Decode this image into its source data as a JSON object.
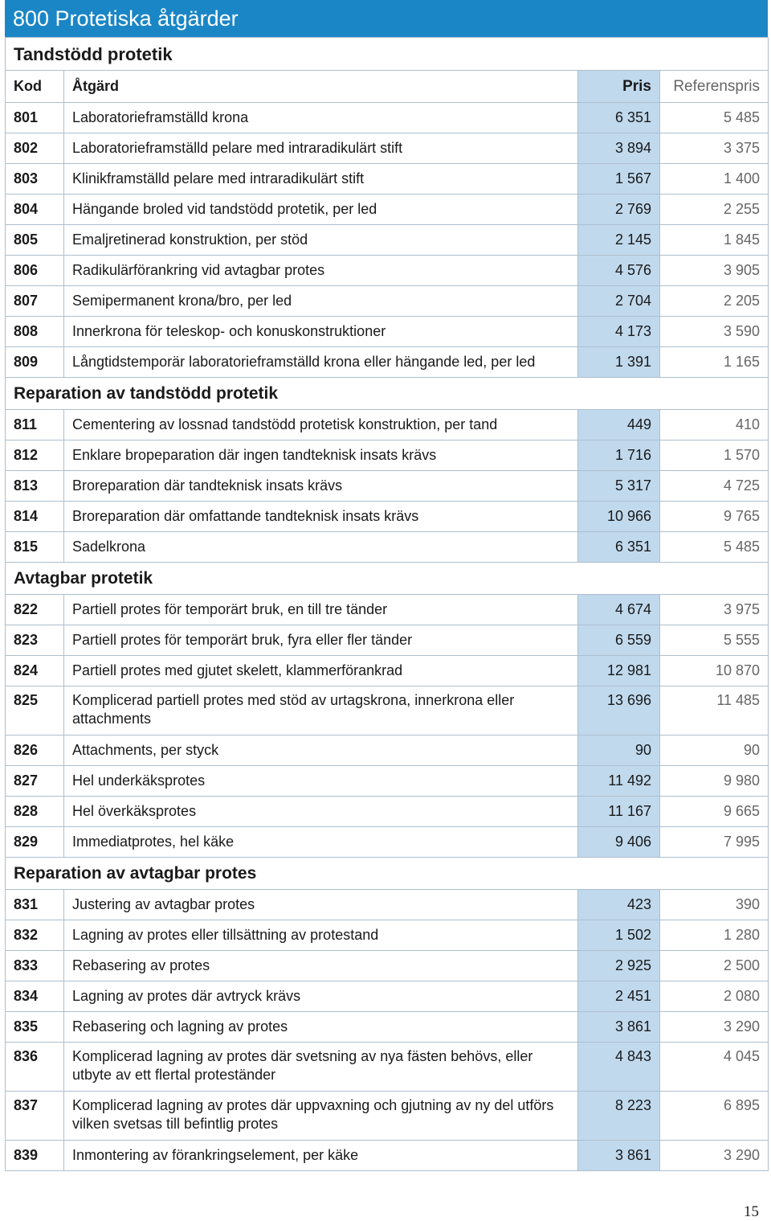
{
  "chapter_title": "800 Protetiska åtgärder",
  "columns": {
    "kod": "Kod",
    "atgard": "Åtgärd",
    "pris": "Pris",
    "referenspris": "Referenspris"
  },
  "sections": [
    {
      "title": "Tandstödd protetik",
      "rows": [
        {
          "kod": "801",
          "atgard": "Laboratorieframställd krona",
          "pris": "6 351",
          "ref": "5 485"
        },
        {
          "kod": "802",
          "atgard": "Laboratorieframställd pelare med intraradikulärt stift",
          "pris": "3 894",
          "ref": "3 375"
        },
        {
          "kod": "803",
          "atgard": "Klinikframställd pelare med intraradikulärt stift",
          "pris": "1 567",
          "ref": "1 400"
        },
        {
          "kod": "804",
          "atgard": "Hängande broled vid tandstödd protetik, per led",
          "pris": "2 769",
          "ref": "2 255"
        },
        {
          "kod": "805",
          "atgard": "Emaljretinerad konstruktion, per stöd",
          "pris": "2 145",
          "ref": "1 845"
        },
        {
          "kod": "806",
          "atgard": "Radikulärförankring vid avtagbar protes",
          "pris": "4 576",
          "ref": "3 905"
        },
        {
          "kod": "807",
          "atgard": "Semipermanent krona/bro, per led",
          "pris": "2 704",
          "ref": "2 205"
        },
        {
          "kod": "808",
          "atgard": "Innerkrona för teleskop- och konuskonstruktioner",
          "pris": "4 173",
          "ref": "3 590"
        },
        {
          "kod": "809",
          "atgard": "Långtidstemporär laboratorieframställd krona eller hängande led, per led",
          "pris": "1 391",
          "ref": "1 165"
        }
      ]
    },
    {
      "title": "Reparation av tandstödd protetik",
      "rows": [
        {
          "kod": "811",
          "atgard": "Cementering av lossnad tandstödd protetisk konstruktion, per tand",
          "pris": "449",
          "ref": "410"
        },
        {
          "kod": "812",
          "atgard": "Enklare brореparation där ingen tandteknisk insats krävs",
          "pris": "1 716",
          "ref": "1 570"
        },
        {
          "kod": "813",
          "atgard": "Broreparation där tandteknisk insats krävs",
          "pris": "5 317",
          "ref": "4 725"
        },
        {
          "kod": "814",
          "atgard": "Broreparation där omfattande tandteknisk insats krävs",
          "pris": "10 966",
          "ref": "9 765"
        },
        {
          "kod": "815",
          "atgard": "Sadelkrona",
          "pris": "6 351",
          "ref": "5 485"
        }
      ]
    },
    {
      "title": "Avtagbar protetik",
      "rows": [
        {
          "kod": "822",
          "atgard": "Partiell protes för temporärt bruk, en till tre tänder",
          "pris": "4 674",
          "ref": "3 975"
        },
        {
          "kod": "823",
          "atgard": "Partiell protes för temporärt bruk, fyra eller fler tänder",
          "pris": "6 559",
          "ref": "5 555"
        },
        {
          "kod": "824",
          "atgard": "Partiell protes med gjutet skelett, klammerförankrad",
          "pris": "12 981",
          "ref": "10 870"
        },
        {
          "kod": "825",
          "atgard": "Komplicerad partiell protes med stöd av urtagskrona, innerkrona eller attachments",
          "pris": "13 696",
          "ref": "11 485",
          "tall": true
        },
        {
          "kod": "826",
          "atgard": "Attachments, per styck",
          "pris": "90",
          "ref": "90"
        },
        {
          "kod": "827",
          "atgard": "Hel underkäksprotes",
          "pris": "11 492",
          "ref": "9 980"
        },
        {
          "kod": "828",
          "atgard": "Hel överkäksprotes",
          "pris": "11 167",
          "ref": "9 665"
        },
        {
          "kod": "829",
          "atgard": "Immediatprotes, hel käke",
          "pris": "9 406",
          "ref": "7 995"
        }
      ]
    },
    {
      "title": "Reparation av avtagbar protes",
      "rows": [
        {
          "kod": "831",
          "atgard": "Justering av avtagbar protes",
          "pris": "423",
          "ref": "390"
        },
        {
          "kod": "832",
          "atgard": "Lagning av protes eller tillsättning av protestand",
          "pris": "1 502",
          "ref": "1 280"
        },
        {
          "kod": "833",
          "atgard": "Rebasering av protes",
          "pris": "2 925",
          "ref": "2 500"
        },
        {
          "kod": "834",
          "atgard": "Lagning av protes där avtryck krävs",
          "pris": "2 451",
          "ref": "2 080"
        },
        {
          "kod": "835",
          "atgard": "Rebasering och lagning av protes",
          "pris": "3 861",
          "ref": "3 290"
        },
        {
          "kod": "836",
          "atgard": "Komplicerad lagning av protes där svetsning av nya fästen behövs, eller utbyte av ett flertal proteständer",
          "pris": "4 843",
          "ref": "4 045",
          "tall": true
        },
        {
          "kod": "837",
          "atgard": "Komplicerad lagning av protes där uppvaxning och gjutning av ny del utförs vilken svetsas till befintlig protes",
          "pris": "8 223",
          "ref": "6 895",
          "tall": true
        },
        {
          "kod": "839",
          "atgard": "Inmontering av förankringselement, per käke",
          "pris": "3 861",
          "ref": "3 290"
        }
      ]
    }
  ],
  "page_number": "15",
  "colors": {
    "title_bar": "#1a86c6",
    "price_column": "#c0d9ed",
    "grid": "#aebfce"
  }
}
